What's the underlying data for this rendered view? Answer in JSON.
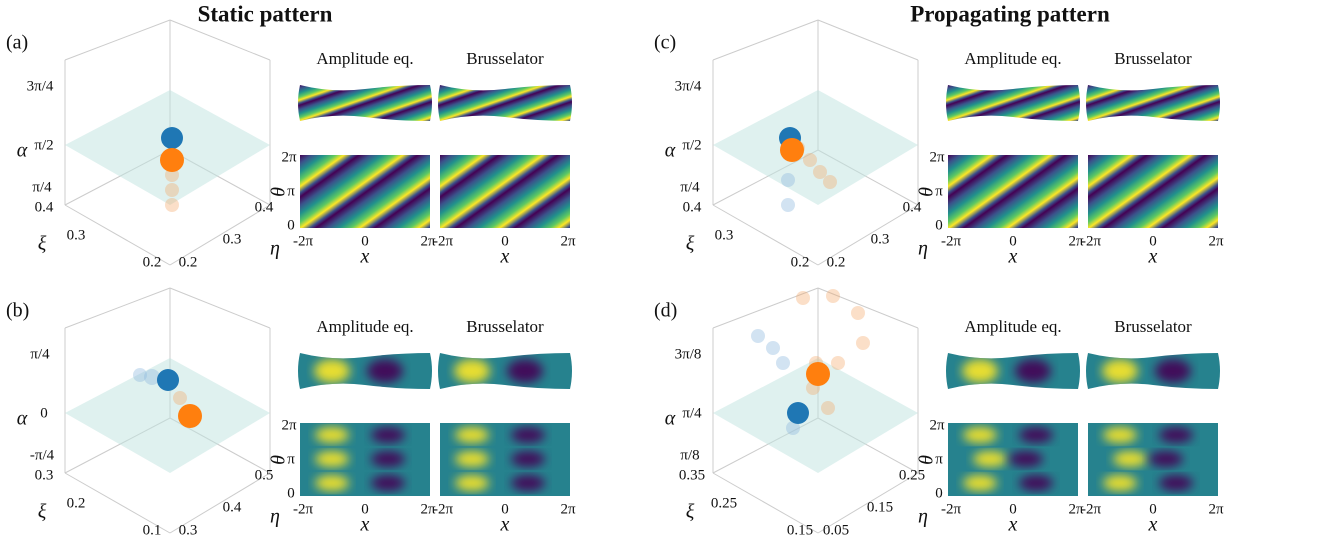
{
  "headers": [
    "Static pattern",
    "Propagating pattern"
  ],
  "panels": [
    {
      "label": "(a)",
      "alpha_label": "α",
      "alpha_ticks": [
        "3π/4",
        "π/2",
        "π/4"
      ],
      "xi_label": "ξ",
      "xi_ticks": [
        "0.4",
        "0.3",
        "0.2"
      ],
      "eta_label": "η",
      "eta_ticks": [
        "0.2",
        "0.3",
        "0.4"
      ],
      "titles": [
        "Amplitude eq.",
        "Brusselator"
      ],
      "theta_label": "θ",
      "theta_ticks": [
        "2π",
        "π",
        "0"
      ],
      "x_label": "x",
      "x_ticks": [
        "-2π",
        "0",
        "2π"
      ]
    },
    {
      "label": "(b)",
      "alpha_label": "α",
      "alpha_ticks": [
        "π/4",
        "0",
        "-π/4"
      ],
      "xi_label": "ξ",
      "xi_ticks": [
        "0.3",
        "0.2",
        "0.1"
      ],
      "eta_label": "η",
      "eta_ticks": [
        "0.3",
        "0.4",
        "0.5"
      ],
      "titles": [
        "Amplitude eq.",
        "Brusselator"
      ],
      "theta_label": "θ",
      "theta_ticks": [
        "2π",
        "π",
        "0"
      ],
      "x_label": "x",
      "x_ticks": [
        "-2π",
        "0",
        "2π"
      ]
    },
    {
      "label": "(c)",
      "alpha_label": "α",
      "alpha_ticks": [
        "3π/4",
        "π/2",
        "π/4"
      ],
      "xi_label": "ξ",
      "xi_ticks": [
        "0.4",
        "0.3",
        "0.2"
      ],
      "eta_label": "η",
      "eta_ticks": [
        "0.2",
        "0.3",
        "0.4"
      ],
      "titles": [
        "Amplitude eq.",
        "Brusselator"
      ],
      "theta_label": "θ",
      "theta_ticks": [
        "2π",
        "π",
        "0"
      ],
      "x_label": "x",
      "x_ticks": [
        "-2π",
        "0",
        "2π"
      ]
    },
    {
      "label": "(d)",
      "alpha_label": "α",
      "alpha_ticks": [
        "3π/8",
        "π/4",
        "π/8"
      ],
      "xi_label": "ξ",
      "xi_ticks": [
        "0.35",
        "0.25",
        "0.15"
      ],
      "eta_label": "η",
      "eta_ticks": [
        "0.05",
        "0.15",
        "0.25"
      ],
      "titles": [
        "Amplitude eq.",
        "Brusselator"
      ],
      "theta_label": "θ",
      "theta_ticks": [
        "2π",
        "π",
        "0"
      ],
      "x_label": "x",
      "x_ticks": [
        "-2π",
        "0",
        "2π"
      ]
    }
  ]
}
